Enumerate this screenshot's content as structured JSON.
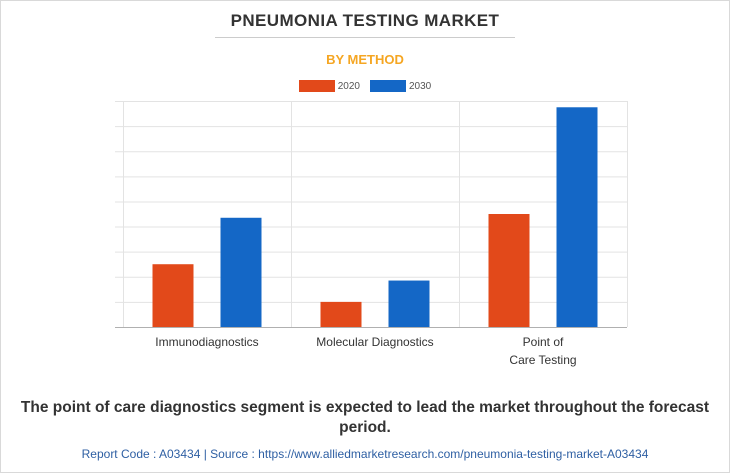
{
  "header": {
    "title": "PNEUMONIA TESTING MARKET",
    "subtitle": "BY METHOD"
  },
  "chart_data": {
    "type": "bar",
    "title": "PNEUMONIA TESTING MARKET",
    "subtitle": "BY METHOD",
    "categories": [
      [
        "Immunodiagnostics"
      ],
      [
        "Molecular Diagnostics"
      ],
      [
        "Point of",
        "Care Testing"
      ]
    ],
    "series": [
      {
        "name": "2020",
        "color": "#e2491a",
        "values": [
          2.5,
          1.0,
          4.5
        ]
      },
      {
        "name": "2030",
        "color": "#1467c6",
        "values": [
          4.35,
          1.85,
          8.75
        ]
      }
    ],
    "ylim": [
      0,
      9
    ],
    "ytick_step": 1,
    "grid": true,
    "legend": "top-center",
    "xlabel": "",
    "ylabel": ""
  },
  "footer": {
    "note": "The point of care diagnostics segment is expected to lead the market throughout the forecast period.",
    "source": "Report Code : A03434  |  Source : https://www.alliedmarketresearch.com/pneumonia-testing-market-A03434"
  }
}
